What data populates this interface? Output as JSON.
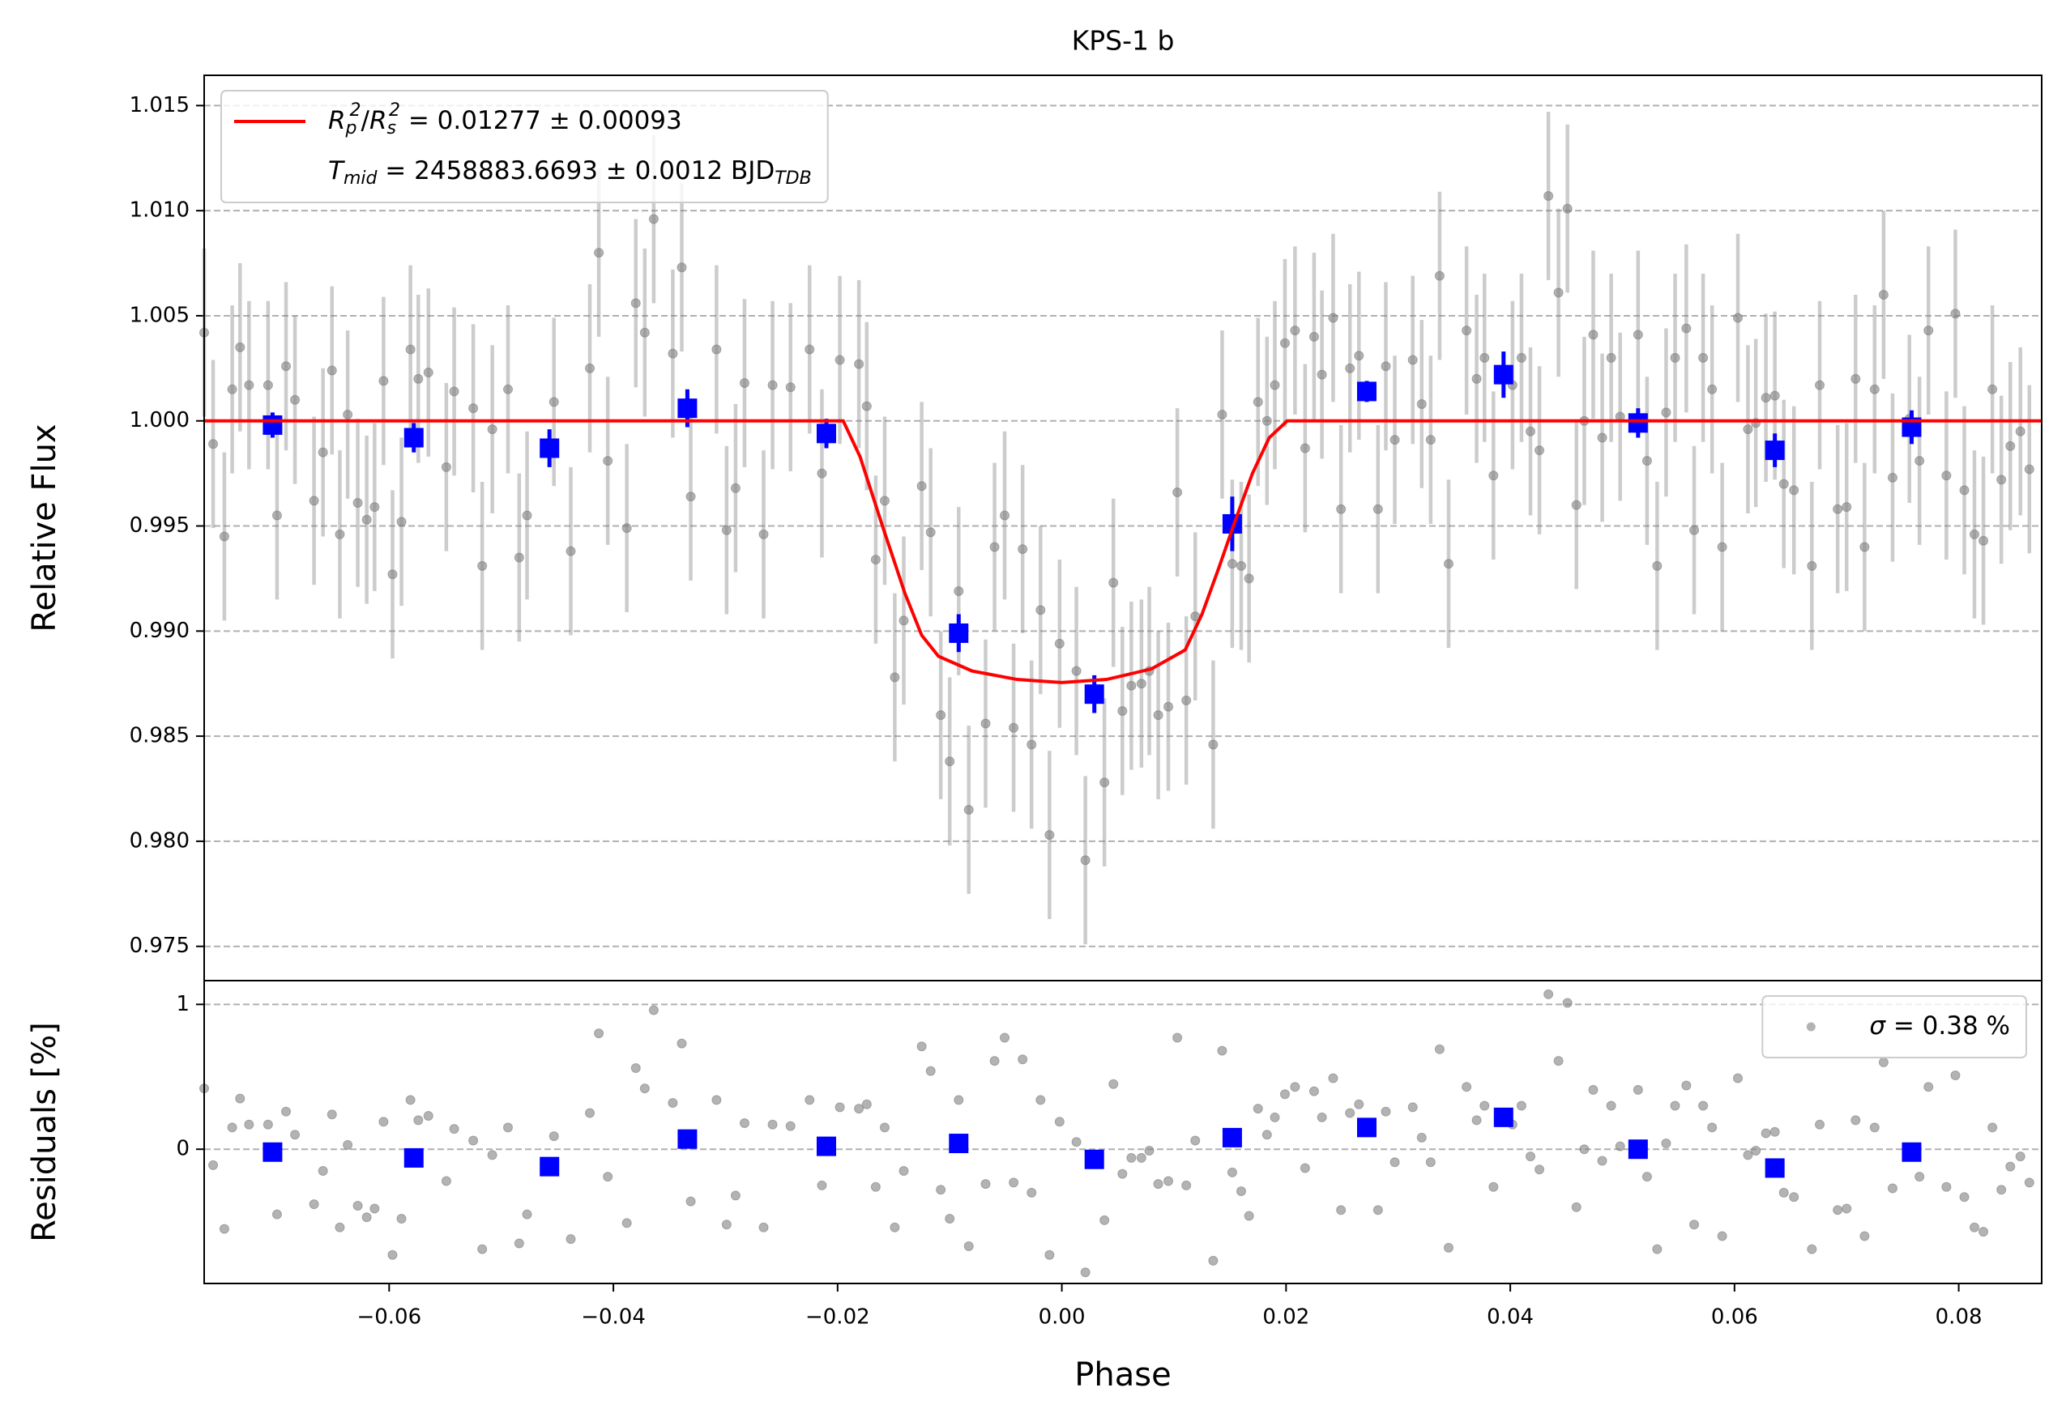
{
  "chart_data": [
    {
      "type": "scatter",
      "title": "KPS-1 b",
      "ylabel": "Relative Flux",
      "xlim": [
        -0.0765,
        0.0874
      ],
      "ylim": [
        0.97337,
        1.01644
      ],
      "yticks": [
        0.975,
        {
          "value": 0.98,
          "label": "0.980"
        },
        0.985,
        {
          "value": 0.99,
          "label": "0.990"
        },
        0.995,
        {
          "value": 1,
          "label": "1.000"
        },
        1.005,
        {
          "value": 1.01,
          "label": "1.010"
        },
        1.015
      ],
      "grid": true,
      "legend": "upper left",
      "series": [
        {
          "type": "errorbar",
          "color": "#808080",
          "error": 0.004,
          "x": [
            -0.0765,
            -0.0757,
            -0.0747,
            -0.074,
            -0.0733,
            -0.0725,
            -0.0708,
            -0.07,
            -0.0692,
            -0.0684,
            -0.0667,
            -0.0659,
            -0.0651,
            -0.0644,
            -0.0637,
            -0.0628,
            -0.062,
            -0.0613,
            -0.0605,
            -0.0597,
            -0.0589,
            -0.0581,
            -0.0574,
            -0.0565,
            -0.0549,
            -0.0542,
            -0.0525,
            -0.0517,
            -0.0508,
            -0.0494,
            -0.0484,
            -0.0477,
            -0.0453,
            -0.0438,
            -0.0421,
            -0.0413,
            -0.0405,
            -0.0388,
            -0.038,
            -0.0372,
            -0.0364,
            -0.0347,
            -0.0339,
            -0.0331,
            -0.0308,
            -0.0299,
            -0.0291,
            -0.0283,
            -0.0266,
            -0.0258,
            -0.0242,
            -0.0225,
            -0.0214,
            -0.0198,
            -0.0181,
            -0.0174,
            -0.0166,
            -0.0158,
            -0.0149,
            -0.0141,
            -0.0125,
            -0.0117,
            -0.0108,
            -0.01,
            -0.0092,
            -0.0083,
            -0.0068,
            -0.006,
            -0.0051,
            -0.0043,
            -0.0035,
            -0.0027,
            -0.0019,
            -0.0011,
            -0.0002,
            0.0013,
            0.0021,
            0.0038,
            0.0046,
            0.0054,
            0.0062,
            0.0071,
            0.0078,
            0.0086,
            0.0095,
            0.0103,
            0.0111,
            0.0119,
            0.0135,
            0.0143,
            0.0152,
            0.016,
            0.0167,
            0.0175,
            0.0183,
            0.019,
            0.0199,
            0.0208,
            0.0217,
            0.0225,
            0.0232,
            0.0242,
            0.0249,
            0.0257,
            0.0265,
            0.0282,
            0.0289,
            0.0297,
            0.0313,
            0.0321,
            0.0329,
            0.0337,
            0.0345,
            0.0361,
            0.037,
            0.0377,
            0.0385,
            0.0402,
            0.041,
            0.0418,
            0.0426,
            0.0434,
            0.0443,
            0.0451,
            0.0459,
            0.0466,
            0.0474,
            0.0482,
            0.049,
            0.0498,
            0.0514,
            0.0522,
            0.0531,
            0.0539,
            0.0547,
            0.0557,
            0.0564,
            0.0572,
            0.058,
            0.0589,
            0.0603,
            0.0612,
            0.0619,
            0.0628,
            0.0636,
            0.0644,
            0.0653,
            0.0669,
            0.0676,
            0.0692,
            0.07,
            0.0708,
            0.0716,
            0.0725,
            0.0733,
            0.0741,
            0.0756,
            0.0765,
            0.0773,
            0.0789,
            0.0797,
            0.0805,
            0.0814,
            0.0822,
            0.083,
            0.0838,
            0.0846,
            0.0855,
            0.0863
          ],
          "values": [
            1.0042,
            0.9989,
            0.9945,
            1.0015,
            1.0035,
            1.0017,
            1.0017,
            0.9955,
            1.0026,
            1.001,
            0.9962,
            0.9985,
            1.0024,
            0.9946,
            1.0003,
            0.9961,
            0.9953,
            0.9959,
            1.0019,
            0.9927,
            0.9952,
            1.0034,
            1.002,
            1.0023,
            0.9978,
            1.0014,
            1.0006,
            0.9931,
            0.9996,
            1.0015,
            0.9935,
            0.9955,
            1.0009,
            0.9938,
            1.0025,
            1.008,
            0.9981,
            0.9949,
            1.0056,
            1.0042,
            1.0096,
            1.0032,
            1.0073,
            0.9964,
            1.0034,
            0.9948,
            0.9968,
            1.0018,
            0.9946,
            1.0017,
            1.0016,
            1.0034,
            0.9975,
            1.0029,
            1.0027,
            1.0007,
            0.9934,
            0.9962,
            0.9878,
            0.9905,
            0.9969,
            0.9947,
            0.986,
            0.9838,
            0.9919,
            0.9815,
            0.9856,
            0.994,
            0.9955,
            0.9854,
            0.9939,
            0.9846,
            0.991,
            0.9803,
            0.9894,
            0.9881,
            0.9791,
            0.9828,
            0.9923,
            0.9862,
            0.9874,
            0.9875,
            0.9881,
            0.986,
            0.9864,
            0.9966,
            0.9867,
            0.9907,
            0.9846,
            1.0003,
            0.9932,
            0.9931,
            0.9925,
            1.0009,
            1.0,
            1.0017,
            1.0037,
            1.0043,
            0.9987,
            1.004,
            1.0022,
            1.0049,
            0.9958,
            1.0025,
            1.0031,
            0.9958,
            1.0026,
            0.9991,
            1.0029,
            1.0008,
            0.9991,
            1.0069,
            0.9932,
            1.0043,
            1.002,
            1.003,
            0.9974,
            1.0017,
            1.003,
            0.9995,
            0.9986,
            1.0107,
            1.0061,
            1.0101,
            0.996,
            1.0,
            1.0041,
            0.9992,
            1.003,
            1.0002,
            1.0041,
            0.9981,
            0.9931,
            1.0004,
            1.003,
            1.0044,
            0.9948,
            1.003,
            1.0015,
            0.994,
            1.0049,
            0.9996,
            0.9999,
            1.0011,
            1.0012,
            0.997,
            0.9967,
            0.9931,
            1.0017,
            0.9958,
            0.9959,
            1.002,
            0.994,
            1.0015,
            1.006,
            0.9973,
            1.0001,
            0.9981,
            1.0043,
            0.9974,
            1.0051,
            0.9967,
            0.9946,
            0.9943,
            1.0015,
            0.9972,
            0.9988,
            0.9995,
            0.9977
          ]
        },
        {
          "type": "binned",
          "color": "#0000ff",
          "x": [
            -0.0704,
            -0.0578,
            -0.0457,
            -0.0334,
            -0.021,
            -0.0092,
            0.0029,
            0.0152,
            0.0272,
            0.0394,
            0.0514,
            0.0636,
            0.0758
          ],
          "values": [
            0.9998,
            0.9992,
            0.9987,
            1.0006,
            0.9994,
            0.9899,
            0.987,
            0.9951,
            1.0014,
            1.0022,
            0.9999,
            0.9986,
            0.9997
          ],
          "errors": [
            0.0006,
            0.0007,
            0.0009,
            0.0009,
            0.0007,
            0.0009,
            0.0009,
            0.0013,
            0.0005,
            0.0011,
            0.0007,
            0.0008,
            0.0008
          ]
        },
        {
          "type": "line",
          "color": "#ff0000",
          "name": [
            [
              {
                "text": "R",
                "style": "it"
              },
              {
                "text": "p",
                "style": "sub"
              },
              {
                "text": "2",
                "style": "sup"
              },
              {
                "text": "/",
                "style": "rm"
              },
              {
                "text": "R",
                "style": "it"
              },
              {
                "text": "s",
                "style": "sub"
              },
              {
                "text": "2",
                "style": "sup"
              },
              {
                "text": " = 0.01277 ± 0.00093",
                "style": "rm"
              }
            ],
            [
              {
                "text": "T",
                "style": "it"
              },
              {
                "text": "mid",
                "style": "sub"
              },
              {
                "text": " = 2458883.6693 ± 0.0012 BJD",
                "style": "rm"
              },
              {
                "text": "TDB",
                "style": "sub"
              }
            ]
          ],
          "x": [
            -0.0765,
            -0.0195,
            -0.018,
            -0.016,
            -0.014,
            -0.0125,
            -0.011,
            -0.008,
            -0.004,
            0,
            0.004,
            0.008,
            0.011,
            0.0125,
            0.014,
            0.0153,
            0.017,
            0.0185,
            0.0201,
            0.0874
          ],
          "values": [
            1,
            1,
            0.9983,
            0.995,
            0.9918,
            0.9898,
            0.9888,
            0.9881,
            0.9877,
            0.98755,
            0.9877,
            0.9882,
            0.9891,
            0.9908,
            0.993,
            0.995,
            0.9975,
            0.9992,
            1,
            1
          ]
        }
      ]
    },
    {
      "type": "scatter",
      "ylabel": "Residuals [%]",
      "xlabel": "Phase",
      "xlim": [
        -0.0765,
        0.0874
      ],
      "ylim": [
        -0.927,
        1.164
      ],
      "xticks": [
        {
          "value": -0.06,
          "label": "−0.06"
        },
        {
          "value": -0.04,
          "label": "−0.04"
        },
        {
          "value": -0.02,
          "label": "−0.02"
        },
        {
          "value": 0,
          "label": "0.00"
        },
        0.02,
        0.04,
        0.06,
        0.08
      ],
      "yticks": [
        0,
        1
      ],
      "grid": true,
      "legend": "upper right",
      "series": [
        {
          "type": "points",
          "color": "#808080",
          "name": [
            [
              {
                "text": "σ",
                "style": "it"
              },
              {
                "text": " = 0.38 %",
                "style": "rm"
              }
            ]
          ],
          "values": [
            0.42,
            -0.11,
            -0.55,
            0.15,
            0.35,
            0.17,
            0.17,
            -0.45,
            0.26,
            0.1,
            -0.38,
            -0.15,
            0.24,
            -0.54,
            0.03,
            -0.39,
            -0.47,
            -0.41,
            0.19,
            -0.73,
            -0.48,
            0.34,
            0.2,
            0.23,
            -0.22,
            0.14,
            0.06,
            -0.69,
            -0.04,
            0.15,
            -0.65,
            -0.45,
            0.09,
            -0.62,
            0.25,
            0.8,
            -0.19,
            -0.51,
            0.56,
            0.42,
            0.96,
            0.32,
            0.73,
            -0.36,
            0.34,
            -0.52,
            -0.32,
            0.18,
            -0.54,
            0.17,
            0.16,
            0.34,
            -0.25,
            0.29,
            0.28,
            0.31,
            -0.26,
            0.15,
            -0.54,
            -0.15,
            0.71,
            0.54,
            -0.28,
            -0.48,
            0.34,
            -0.67,
            -0.24,
            0.61,
            0.77,
            -0.23,
            0.62,
            -0.3,
            0.34,
            -0.73,
            0.19,
            0.05,
            -0.85,
            -0.49,
            0.45,
            -0.17,
            -0.06,
            -0.06,
            -0.01,
            -0.24,
            -0.22,
            0.77,
            -0.25,
            0.06,
            -0.77,
            0.68,
            -0.16,
            -0.29,
            -0.46,
            0.28,
            0.1,
            0.22,
            0.38,
            0.43,
            -0.13,
            0.4,
            0.22,
            0.49,
            -0.42,
            0.25,
            0.31,
            -0.42,
            0.26,
            -0.09,
            0.29,
            0.08,
            -0.09,
            0.69,
            -0.68,
            0.43,
            0.2,
            0.3,
            -0.26,
            0.17,
            0.3,
            -0.05,
            -0.14,
            1.07,
            0.61,
            1.01,
            -0.4,
            0,
            0.41,
            -0.08,
            0.3,
            0.02,
            0.41,
            -0.19,
            -0.69,
            0.04,
            0.3,
            0.44,
            -0.52,
            0.3,
            0.15,
            -0.6,
            0.49,
            -0.04,
            -0.01,
            0.11,
            0.12,
            -0.3,
            -0.33,
            -0.69,
            0.17,
            -0.42,
            -0.41,
            0.2,
            -0.6,
            0.15,
            0.6,
            -0.27,
            0.01,
            -0.19,
            0.43,
            -0.26,
            0.51,
            -0.33,
            -0.54,
            -0.57,
            0.15,
            -0.28,
            -0.12,
            -0.05,
            -0.23
          ]
        },
        {
          "type": "binned",
          "color": "#0000ff",
          "values": [
            -0.02,
            -0.06,
            -0.12,
            0.07,
            0.02,
            0.04,
            -0.07,
            0.08,
            0.15,
            0.22,
            0,
            -0.13,
            -0.02
          ]
        }
      ]
    }
  ]
}
